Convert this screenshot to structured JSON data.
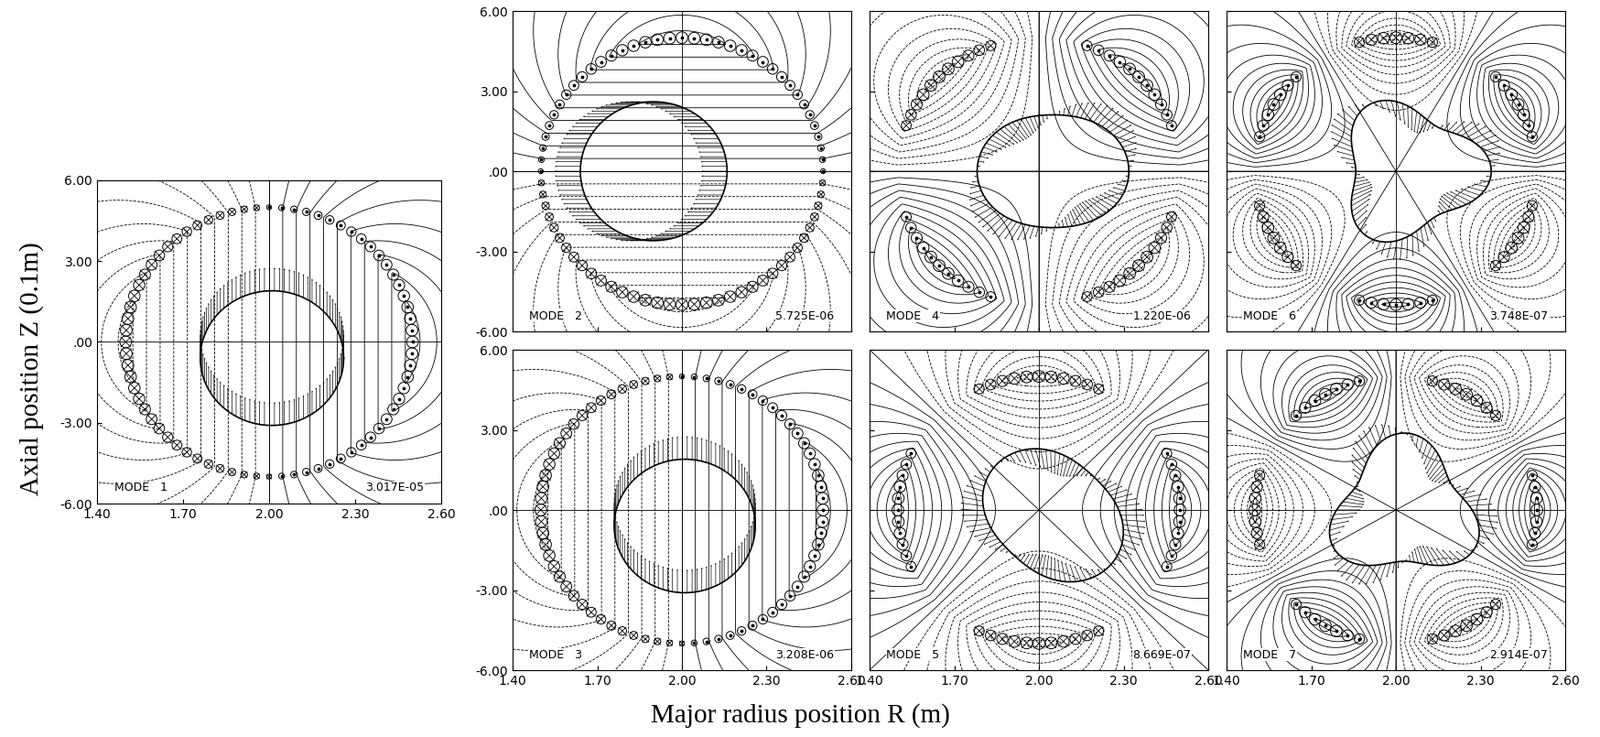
{
  "axis_labels": {
    "x": "Major radius position R (m)",
    "y": "Axial position Z (0.1m)"
  },
  "chart_data": [
    {
      "type": "contour",
      "annotations": [
        "MODE   1",
        "3.017E-05"
      ],
      "xlim": [
        1.4,
        2.6
      ],
      "ylim": [
        -6,
        6
      ],
      "xticks": [
        {
          "value": 1.4,
          "label": "1.40"
        },
        {
          "value": 1.7,
          "label": "1.70"
        },
        {
          "value": 2.0,
          "label": "2.00"
        },
        {
          "value": 2.3,
          "label": "2.30"
        },
        {
          "value": 2.6,
          "label": "2.60"
        }
      ],
      "yticks": [
        {
          "value": 6,
          "label": "6.00"
        },
        {
          "value": 3,
          "label": "3.00"
        },
        {
          "value": 0,
          "label": ".00"
        },
        {
          "value": -3,
          "label": "-3.00"
        },
        {
          "value": -6,
          "label": "-6.00"
        }
      ],
      "m": 1,
      "angle": 0,
      "coils": {
        "center": [
          2.0,
          0.0
        ],
        "radius": [
          0.5,
          5.0
        ]
      },
      "plasma": {
        "center": [
          2.01,
          -0.6
        ],
        "radius": [
          0.25,
          2.5
        ],
        "deformation": 0,
        "angle": 0
      }
    },
    {
      "type": "contour",
      "annotations": [
        "MODE   2",
        "5.725E-06"
      ],
      "xlim": [
        1.4,
        2.6
      ],
      "ylim": [
        -6,
        6
      ],
      "xticks": [
        {
          "value": 1.4,
          "label": "1.40"
        },
        {
          "value": 1.7,
          "label": "1.70"
        },
        {
          "value": 2.0,
          "label": "2.00"
        },
        {
          "value": 2.3,
          "label": "2.30"
        },
        {
          "value": 2.6,
          "label": "2.60"
        }
      ],
      "yticks": [
        {
          "value": 6,
          "label": "6.00"
        },
        {
          "value": 3,
          "label": "3.00"
        },
        {
          "value": 0,
          "label": ".00"
        },
        {
          "value": -3,
          "label": "-3.00"
        },
        {
          "value": -6,
          "label": "-6.00"
        }
      ],
      "tick_labels": "y",
      "m": 1,
      "angle": 90,
      "coils": {
        "center": [
          2.0,
          0.0
        ],
        "radius": [
          0.5,
          5.0
        ]
      },
      "plasma": {
        "center": [
          1.9,
          0.0
        ],
        "radius": [
          0.26,
          2.6
        ],
        "deformation": 0,
        "angle": 0
      }
    },
    {
      "type": "contour",
      "annotations": [
        "MODE   3",
        "3.208E-06"
      ],
      "xlim": [
        1.4,
        2.6
      ],
      "ylim": [
        -6,
        6
      ],
      "xticks": [
        {
          "value": 1.4,
          "label": "1.40"
        },
        {
          "value": 1.7,
          "label": "1.70"
        },
        {
          "value": 2.0,
          "label": "2.00"
        },
        {
          "value": 2.3,
          "label": "2.30"
        },
        {
          "value": 2.6,
          "label": "2.60"
        }
      ],
      "yticks": [
        {
          "value": 6,
          "label": "6.00"
        },
        {
          "value": 3,
          "label": "3.00"
        },
        {
          "value": 0,
          "label": ".00"
        },
        {
          "value": -3,
          "label": "-3.00"
        },
        {
          "value": -6,
          "label": "-6.00"
        }
      ],
      "m": 1,
      "angle": 0,
      "coils": {
        "center": [
          2.0,
          0.0
        ],
        "radius": [
          0.5,
          5.0
        ]
      },
      "plasma": {
        "center": [
          2.01,
          -0.6
        ],
        "radius": [
          0.25,
          2.5
        ],
        "deformation": 0,
        "angle": 0
      }
    },
    {
      "type": "contour",
      "annotations": [
        "MODE   4",
        "1.220E-06"
      ],
      "xlim": [
        1.4,
        2.6
      ],
      "ylim": [
        -6,
        6
      ],
      "xticks": [
        {
          "value": 1.4,
          "label": "1.40"
        },
        {
          "value": 1.7,
          "label": "1.70"
        },
        {
          "value": 2.0,
          "label": "2.00"
        },
        {
          "value": 2.3,
          "label": "2.30"
        },
        {
          "value": 2.6,
          "label": "2.60"
        }
      ],
      "yticks": [
        {
          "value": 6,
          "label": "6.00"
        },
        {
          "value": 3,
          "label": "3.00"
        },
        {
          "value": 0,
          "label": ".00"
        },
        {
          "value": -3,
          "label": "-3.00"
        },
        {
          "value": -6,
          "label": "-6.00"
        }
      ],
      "tick_labels": false,
      "m": 2,
      "angle": 45,
      "coils": {
        "center": [
          2.0,
          0.0
        ],
        "radius": [
          0.5,
          5.0
        ]
      },
      "plasma": {
        "center": [
          2.05,
          0.0
        ],
        "radius": [
          0.24,
          2.4
        ],
        "deformation": 0.12,
        "angle": 0
      }
    },
    {
      "type": "contour",
      "annotations": [
        "MODE   5",
        "8.669E-07"
      ],
      "xlim": [
        1.4,
        2.6
      ],
      "ylim": [
        -6,
        6
      ],
      "xticks": [
        {
          "value": 1.4,
          "label": "1.40"
        },
        {
          "value": 1.7,
          "label": "1.70"
        },
        {
          "value": 2.0,
          "label": "2.00"
        },
        {
          "value": 2.3,
          "label": "2.30"
        },
        {
          "value": 2.6,
          "label": "2.60"
        }
      ],
      "yticks": [
        {
          "value": 6,
          "label": "6.00"
        },
        {
          "value": 3,
          "label": "3.00"
        },
        {
          "value": 0,
          "label": ".00"
        },
        {
          "value": -3,
          "label": "-3.00"
        },
        {
          "value": -6,
          "label": "-6.00"
        }
      ],
      "tick_labels": "x",
      "m": 2,
      "angle": 0,
      "coils": {
        "center": [
          2.0,
          0.0
        ],
        "radius": [
          0.5,
          5.0
        ]
      },
      "plasma": {
        "center": [
          2.05,
          -0.2
        ],
        "radius": [
          0.24,
          2.4
        ],
        "deformation": 0.15,
        "angle": 135
      }
    },
    {
      "type": "contour",
      "annotations": [
        "MODE   6",
        "3.748E-07"
      ],
      "xlim": [
        1.4,
        2.6
      ],
      "ylim": [
        -6,
        6
      ],
      "xticks": [
        {
          "value": 1.4,
          "label": "1.40"
        },
        {
          "value": 1.7,
          "label": "1.70"
        },
        {
          "value": 2.0,
          "label": "2.00"
        },
        {
          "value": 2.3,
          "label": "2.30"
        },
        {
          "value": 2.6,
          "label": "2.60"
        }
      ],
      "yticks": [
        {
          "value": 6,
          "label": "6.00"
        },
        {
          "value": 3,
          "label": "3.00"
        },
        {
          "value": 0,
          "label": ".00"
        },
        {
          "value": -3,
          "label": "-3.00"
        },
        {
          "value": -6,
          "label": "-6.00"
        }
      ],
      "tick_labels": false,
      "m": 3,
      "angle": 30,
      "coils": {
        "center": [
          2.0,
          0.0
        ],
        "radius": [
          0.5,
          5.0
        ]
      },
      "plasma": {
        "center": [
          2.05,
          0.0
        ],
        "radius": [
          0.24,
          2.4
        ],
        "deformation": 0.2,
        "angle": 0
      }
    },
    {
      "type": "contour",
      "annotations": [
        "MODE   7",
        "2.914E-07"
      ],
      "xlim": [
        1.4,
        2.6
      ],
      "ylim": [
        -6,
        6
      ],
      "xticks": [
        {
          "value": 1.4,
          "label": "1.40"
        },
        {
          "value": 1.7,
          "label": "1.70"
        },
        {
          "value": 2.0,
          "label": "2.00"
        },
        {
          "value": 2.3,
          "label": "2.30"
        },
        {
          "value": 2.6,
          "label": "2.60"
        }
      ],
      "yticks": [
        {
          "value": 6,
          "label": "6.00"
        },
        {
          "value": 3,
          "label": "3.00"
        },
        {
          "value": 0,
          "label": ".00"
        },
        {
          "value": -3,
          "label": "-3.00"
        },
        {
          "value": -6,
          "label": "-6.00"
        }
      ],
      "tick_labels": "x",
      "m": 3,
      "angle": 0,
      "coils": {
        "center": [
          2.0,
          0.0
        ],
        "radius": [
          0.5,
          5.0
        ]
      },
      "plasma": {
        "center": [
          2.03,
          0.0
        ],
        "radius": [
          0.24,
          2.4
        ],
        "deformation": 0.2,
        "angle": 90
      }
    }
  ]
}
